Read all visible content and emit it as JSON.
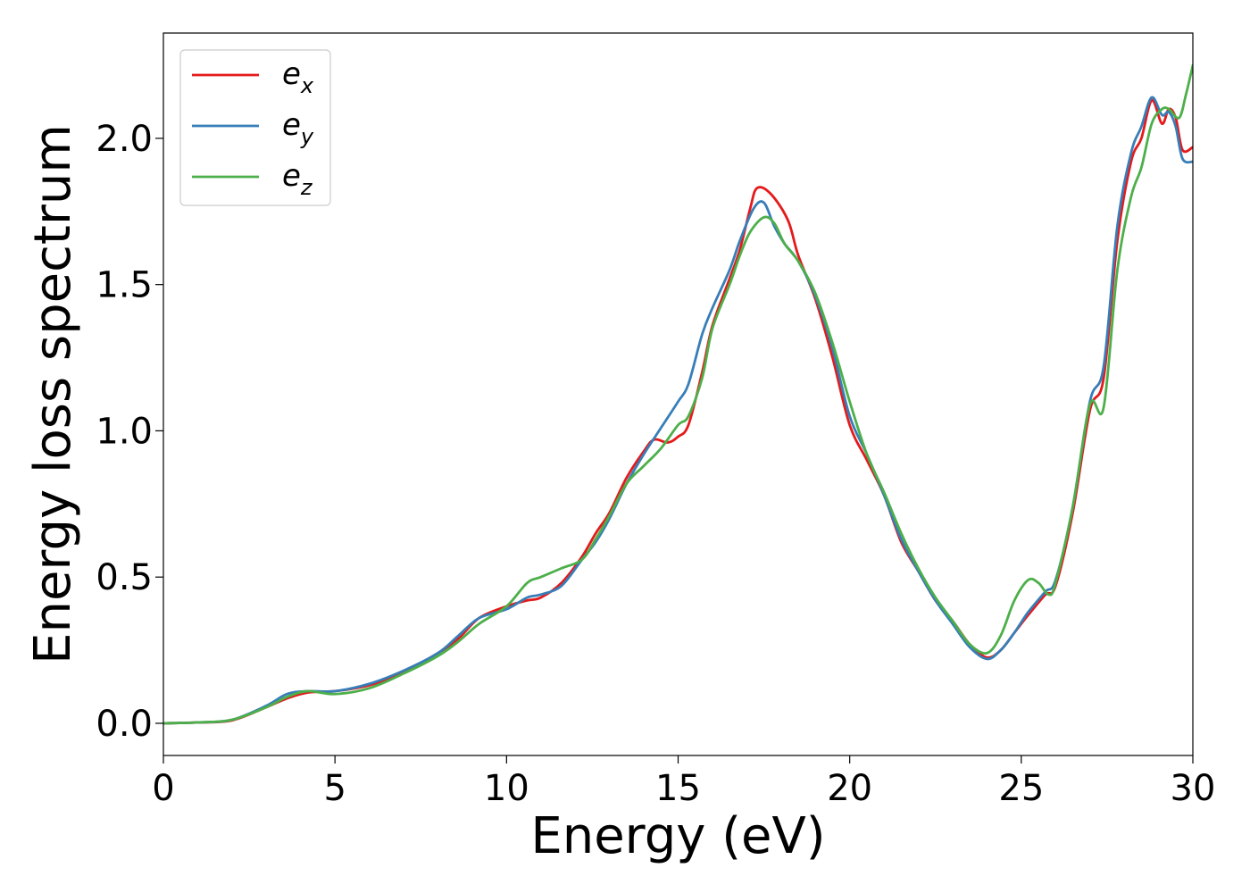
{
  "chart_data": {
    "type": "line",
    "title": "",
    "xlabel": "Energy (eV)",
    "ylabel": "Energy loss spectrum",
    "xlim": [
      0,
      30
    ],
    "ylim": [
      -0.11,
      2.36
    ],
    "xticks": [
      0,
      5,
      10,
      15,
      20,
      25,
      30
    ],
    "xtick_labels": [
      "0",
      "5",
      "10",
      "15",
      "20",
      "25",
      "30"
    ],
    "yticks": [
      0.0,
      0.5,
      1.0,
      1.5,
      2.0
    ],
    "ytick_labels": [
      "0.0",
      "0.5",
      "1.0",
      "1.5",
      "2.0"
    ],
    "grid": false,
    "legend_position": "top-left",
    "series": [
      {
        "name": "e_x",
        "label_main": "e",
        "label_sub": "x",
        "color": "#e41a1c",
        "points": [
          [
            0,
            0
          ],
          [
            1,
            0.003
          ],
          [
            2,
            0.01
          ],
          [
            3,
            0.055
          ],
          [
            3.6,
            0.085
          ],
          [
            4.2,
            0.105
          ],
          [
            5,
            0.11
          ],
          [
            6,
            0.13
          ],
          [
            7,
            0.175
          ],
          [
            8,
            0.24
          ],
          [
            8.6,
            0.29
          ],
          [
            9.2,
            0.36
          ],
          [
            10,
            0.4
          ],
          [
            10.6,
            0.42
          ],
          [
            11,
            0.43
          ],
          [
            11.6,
            0.48
          ],
          [
            12.2,
            0.57
          ],
          [
            12.6,
            0.65
          ],
          [
            13,
            0.72
          ],
          [
            13.5,
            0.84
          ],
          [
            14,
            0.93
          ],
          [
            14.3,
            0.97
          ],
          [
            14.7,
            0.96
          ],
          [
            15,
            0.98
          ],
          [
            15.3,
            1.02
          ],
          [
            15.7,
            1.2
          ],
          [
            16,
            1.36
          ],
          [
            16.5,
            1.52
          ],
          [
            16.8,
            1.62
          ],
          [
            17.1,
            1.76
          ],
          [
            17.3,
            1.83
          ],
          [
            17.7,
            1.81
          ],
          [
            18.2,
            1.72
          ],
          [
            18.5,
            1.6
          ],
          [
            19,
            1.45
          ],
          [
            19.5,
            1.25
          ],
          [
            20,
            1.02
          ],
          [
            20.5,
            0.9
          ],
          [
            21,
            0.78
          ],
          [
            21.5,
            0.62
          ],
          [
            22,
            0.52
          ],
          [
            22.5,
            0.42
          ],
          [
            23,
            0.35
          ],
          [
            23.5,
            0.27
          ],
          [
            24,
            0.225
          ],
          [
            24.4,
            0.25
          ],
          [
            24.8,
            0.31
          ],
          [
            25.2,
            0.37
          ],
          [
            25.7,
            0.44
          ],
          [
            26,
            0.47
          ],
          [
            26.5,
            0.72
          ],
          [
            27,
            1.07
          ],
          [
            27.4,
            1.18
          ],
          [
            27.8,
            1.65
          ],
          [
            28.2,
            1.92
          ],
          [
            28.5,
            2.0
          ],
          [
            28.8,
            2.13
          ],
          [
            29.1,
            2.05
          ],
          [
            29.3,
            2.1
          ],
          [
            29.5,
            2.07
          ],
          [
            29.7,
            1.96
          ],
          [
            30,
            1.97
          ]
        ]
      },
      {
        "name": "e_y",
        "label_main": "e",
        "label_sub": "y",
        "color": "#377eb8",
        "points": [
          [
            0,
            0
          ],
          [
            1,
            0.003
          ],
          [
            2,
            0.012
          ],
          [
            3,
            0.06
          ],
          [
            3.6,
            0.1
          ],
          [
            4.2,
            0.11
          ],
          [
            5,
            0.11
          ],
          [
            6,
            0.135
          ],
          [
            7,
            0.18
          ],
          [
            8,
            0.24
          ],
          [
            8.6,
            0.3
          ],
          [
            9.2,
            0.36
          ],
          [
            10,
            0.39
          ],
          [
            10.6,
            0.43
          ],
          [
            11,
            0.44
          ],
          [
            11.6,
            0.47
          ],
          [
            12.2,
            0.56
          ],
          [
            12.6,
            0.62
          ],
          [
            13,
            0.7
          ],
          [
            13.5,
            0.82
          ],
          [
            14,
            0.92
          ],
          [
            14.5,
            1.01
          ],
          [
            15,
            1.1
          ],
          [
            15.3,
            1.16
          ],
          [
            15.7,
            1.33
          ],
          [
            16,
            1.42
          ],
          [
            16.5,
            1.55
          ],
          [
            16.8,
            1.65
          ],
          [
            17.2,
            1.76
          ],
          [
            17.5,
            1.78
          ],
          [
            17.8,
            1.7
          ],
          [
            18.1,
            1.64
          ],
          [
            18.5,
            1.58
          ],
          [
            19,
            1.46
          ],
          [
            19.5,
            1.28
          ],
          [
            20,
            1.05
          ],
          [
            20.5,
            0.92
          ],
          [
            21,
            0.78
          ],
          [
            21.5,
            0.63
          ],
          [
            22,
            0.52
          ],
          [
            22.5,
            0.42
          ],
          [
            23,
            0.34
          ],
          [
            23.5,
            0.26
          ],
          [
            24,
            0.22
          ],
          [
            24.4,
            0.25
          ],
          [
            24.8,
            0.31
          ],
          [
            25.2,
            0.38
          ],
          [
            25.7,
            0.45
          ],
          [
            26,
            0.49
          ],
          [
            26.5,
            0.74
          ],
          [
            27,
            1.1
          ],
          [
            27.4,
            1.22
          ],
          [
            27.8,
            1.7
          ],
          [
            28.2,
            1.95
          ],
          [
            28.5,
            2.04
          ],
          [
            28.8,
            2.14
          ],
          [
            29.1,
            2.08
          ],
          [
            29.3,
            2.09
          ],
          [
            29.5,
            2.04
          ],
          [
            29.7,
            1.93
          ],
          [
            30,
            1.92
          ]
        ]
      },
      {
        "name": "e_z",
        "label_main": "e",
        "label_sub": "z",
        "color": "#4daf4a",
        "points": [
          [
            0,
            0
          ],
          [
            1,
            0.003
          ],
          [
            2,
            0.012
          ],
          [
            3,
            0.055
          ],
          [
            3.6,
            0.09
          ],
          [
            4.2,
            0.11
          ],
          [
            5,
            0.1
          ],
          [
            6,
            0.12
          ],
          [
            7,
            0.17
          ],
          [
            8,
            0.23
          ],
          [
            8.6,
            0.28
          ],
          [
            9.2,
            0.34
          ],
          [
            10,
            0.4
          ],
          [
            10.6,
            0.48
          ],
          [
            11,
            0.5
          ],
          [
            11.6,
            0.53
          ],
          [
            12.2,
            0.56
          ],
          [
            12.6,
            0.63
          ],
          [
            13,
            0.71
          ],
          [
            13.5,
            0.82
          ],
          [
            14,
            0.88
          ],
          [
            14.5,
            0.94
          ],
          [
            15,
            1.02
          ],
          [
            15.3,
            1.05
          ],
          [
            15.7,
            1.18
          ],
          [
            16,
            1.35
          ],
          [
            16.5,
            1.5
          ],
          [
            16.8,
            1.6
          ],
          [
            17.1,
            1.68
          ],
          [
            17.5,
            1.73
          ],
          [
            17.8,
            1.71
          ],
          [
            18.1,
            1.64
          ],
          [
            18.5,
            1.58
          ],
          [
            19,
            1.47
          ],
          [
            19.5,
            1.3
          ],
          [
            20,
            1.1
          ],
          [
            20.5,
            0.92
          ],
          [
            21,
            0.79
          ],
          [
            21.5,
            0.65
          ],
          [
            22,
            0.53
          ],
          [
            22.5,
            0.43
          ],
          [
            23,
            0.35
          ],
          [
            23.5,
            0.27
          ],
          [
            24,
            0.24
          ],
          [
            24.4,
            0.3
          ],
          [
            24.8,
            0.42
          ],
          [
            25.2,
            0.49
          ],
          [
            25.5,
            0.48
          ],
          [
            25.8,
            0.44
          ],
          [
            26,
            0.48
          ],
          [
            26.5,
            0.74
          ],
          [
            27,
            1.09
          ],
          [
            27.4,
            1.08
          ],
          [
            27.8,
            1.55
          ],
          [
            28.2,
            1.8
          ],
          [
            28.5,
            1.9
          ],
          [
            28.8,
            2.05
          ],
          [
            29.1,
            2.1
          ],
          [
            29.3,
            2.1
          ],
          [
            29.6,
            2.07
          ],
          [
            29.8,
            2.15
          ],
          [
            30,
            2.25
          ]
        ]
      }
    ]
  }
}
